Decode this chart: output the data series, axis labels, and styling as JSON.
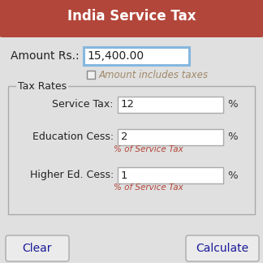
{
  "title": "India Service Tax",
  "title_bg": "#b3463a",
  "title_color": "#ffffff",
  "bg_color": "#e0e0e0",
  "amount_label": "Amount Rs.:",
  "amount_value": "15,400.00",
  "amount_box_border": "#85b8e0",
  "checkbox_label": "Amount includes taxes",
  "checkbox_label_color": "#a08868",
  "tax_rates_label": "Tax Rates",
  "fields": [
    {
      "label": "Service Tax:",
      "value": "12",
      "sublabel": ""
    },
    {
      "label": "Education Cess:",
      "value": "2",
      "sublabel": "% of Service Tax"
    },
    {
      "label": "Higher Ed. Cess:",
      "value": "1",
      "sublabel": "% of Service Tax"
    }
  ],
  "field_box_color": "#ffffff",
  "field_box_border": "#aaaaaa",
  "percent_color": "#333333",
  "sublabel_color": "#b3463a",
  "button_clear": "Clear",
  "button_calculate": "Calculate",
  "button_text_color": "#1a1a9a",
  "button_bg": "#ebebeb",
  "button_border": "#aaaaaa",
  "outer_border": "#cccccc",
  "figsize": [
    3.24,
    3.24
  ],
  "dpi": 100
}
